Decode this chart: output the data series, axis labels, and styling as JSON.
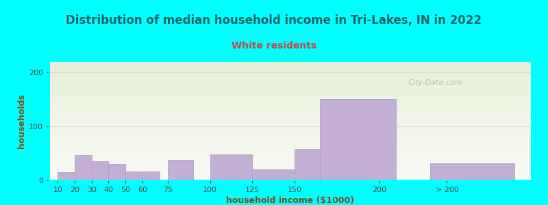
{
  "title": "Distribution of median household income in Tri-Lakes, IN in 2022",
  "subtitle": "White residents",
  "xlabel": "household income ($1000)",
  "ylabel": "households",
  "background_color": "#00FFFF",
  "plot_bg_top": "#e8f0d8",
  "plot_bg_bottom": "#f8faf5",
  "bar_color": "#c4afd4",
  "bar_edge_color": "#b09ec4",
  "title_color": "#1a6060",
  "subtitle_color": "#cc4444",
  "axis_label_color": "#8B4513",
  "tick_color": "#444444",
  "values": [
    15,
    47,
    35,
    30,
    17,
    17,
    38,
    48,
    20,
    58,
    150,
    32
  ],
  "bar_lefts": [
    10,
    20,
    30,
    40,
    50,
    60,
    75,
    100,
    125,
    150,
    165,
    230
  ],
  "bar_widths": [
    10,
    10,
    10,
    10,
    10,
    10,
    15,
    25,
    25,
    15,
    45,
    50
  ],
  "xtick_positions": [
    10,
    20,
    30,
    40,
    50,
    60,
    75,
    100,
    125,
    150,
    200,
    240
  ],
  "xtick_labels": [
    "10",
    "20",
    "30",
    "40",
    "50",
    "60",
    "75",
    "100",
    "125",
    "150",
    "200",
    "> 200"
  ],
  "yticks": [
    0,
    100,
    200
  ],
  "ylim": [
    0,
    220
  ],
  "xlim": [
    5,
    290
  ],
  "watermark": "City-Data.com"
}
